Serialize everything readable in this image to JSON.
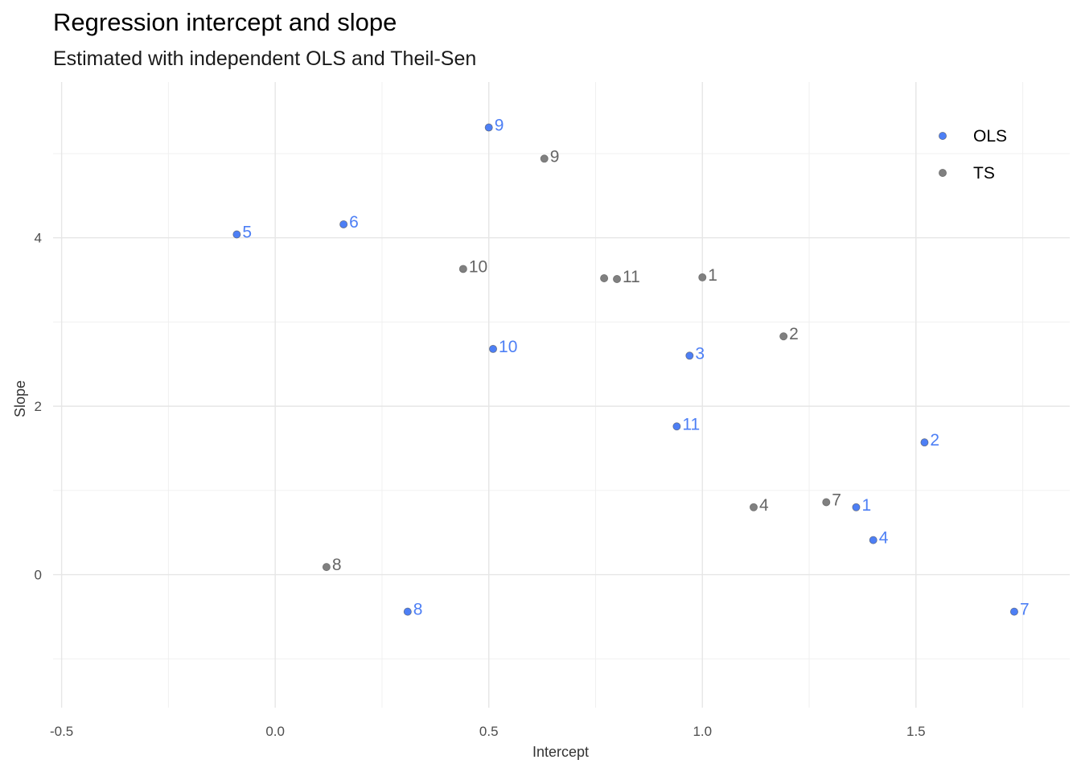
{
  "chart_data": {
    "type": "scatter",
    "title": "Regression intercept and slope",
    "subtitle": "Estimated with independent OLS and Theil-Sen",
    "xlabel": "Intercept",
    "ylabel": "Slope",
    "xlim": [
      -0.52,
      1.86
    ],
    "ylim": [
      -1.58,
      5.85
    ],
    "x_ticks": [
      -0.5,
      0.0,
      0.5,
      1.0,
      1.5
    ],
    "x_tick_labels": [
      "-0.5",
      "0.0",
      "0.5",
      "1.0",
      "1.5"
    ],
    "y_ticks": [
      0,
      2,
      4
    ],
    "y_tick_labels": [
      "0",
      "2",
      "4"
    ],
    "grid": true,
    "legend_position": "top-right",
    "series": [
      {
        "name": "OLS",
        "color": "#4d7ff5",
        "points": [
          {
            "label": "1",
            "x": 1.36,
            "y": 0.8
          },
          {
            "label": "2",
            "x": 1.52,
            "y": 1.57
          },
          {
            "label": "3",
            "x": 0.97,
            "y": 2.6
          },
          {
            "label": "4",
            "x": 1.4,
            "y": 0.41
          },
          {
            "label": "5",
            "x": -0.09,
            "y": 4.04
          },
          {
            "label": "6",
            "x": 0.16,
            "y": 4.16
          },
          {
            "label": "7",
            "x": 1.73,
            "y": -0.44
          },
          {
            "label": "8",
            "x": 0.31,
            "y": -0.44
          },
          {
            "label": "9",
            "x": 0.5,
            "y": 5.31
          },
          {
            "label": "10",
            "x": 0.51,
            "y": 2.68
          },
          {
            "label": "11",
            "x": 0.94,
            "y": 1.76
          }
        ]
      },
      {
        "name": "TS",
        "color": "#808080",
        "points": [
          {
            "label": "1",
            "x": 1.0,
            "y": 3.53
          },
          {
            "label": "2",
            "x": 1.19,
            "y": 2.83
          },
          {
            "label": "4",
            "x": 1.12,
            "y": 0.8
          },
          {
            "label": "7",
            "x": 1.29,
            "y": 0.86
          },
          {
            "label": "8",
            "x": 0.12,
            "y": 0.09
          },
          {
            "label": "9",
            "x": 0.63,
            "y": 4.94
          },
          {
            "label": "10",
            "x": 0.44,
            "y": 3.63
          },
          {
            "label": "11",
            "x": 0.8,
            "y": 3.51
          },
          {
            "label": "",
            "x": 0.77,
            "y": 3.52
          }
        ]
      }
    ]
  }
}
